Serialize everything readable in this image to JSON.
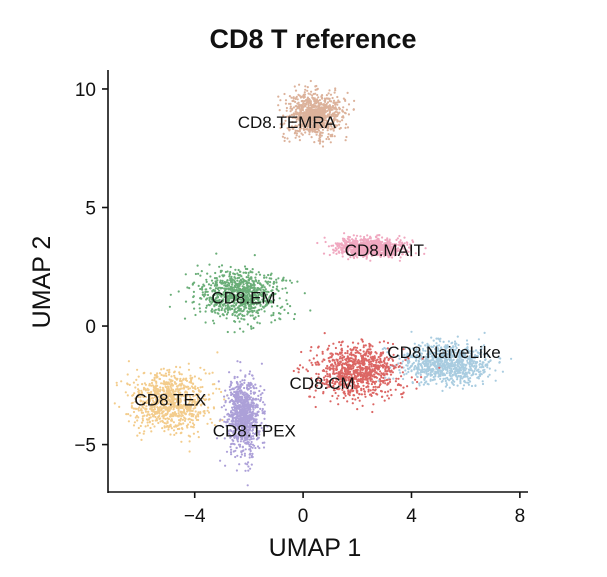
{
  "chart_data": {
    "type": "scatter",
    "title": "CD8 T reference",
    "xlabel": "UMAP 1",
    "ylabel": "UMAP 2",
    "xlim": [
      -7.2,
      8.3
    ],
    "ylim": [
      -7.0,
      10.8
    ],
    "xticks": [
      -4,
      0,
      4,
      8
    ],
    "xtick_labels": [
      "−4",
      "0",
      "4",
      "8"
    ],
    "yticks": [
      -5,
      0,
      5,
      10
    ],
    "ytick_labels": [
      "−5",
      "0",
      "5",
      "10"
    ],
    "grid": false,
    "legend": "none",
    "series": [
      {
        "name": "CD8.TEMRA",
        "color": "#dcb29b",
        "center": [
          0.4,
          8.9
        ],
        "spread": [
          1.2,
          1.1
        ],
        "label_pos": [
          -0.6,
          8.6
        ]
      },
      {
        "name": "CD8.MAIT",
        "color": "#f0a8c0",
        "center": [
          2.5,
          3.3
        ],
        "spread": [
          1.5,
          0.45
        ],
        "label_pos": [
          3.0,
          3.2
        ]
      },
      {
        "name": "CD8.EM",
        "color": "#6aae78",
        "center": [
          -2.3,
          1.3
        ],
        "spread": [
          1.8,
          1.2
        ],
        "label_pos": [
          -2.2,
          1.2
        ]
      },
      {
        "name": "CD8.NaiveLike",
        "color": "#a9cce0",
        "center": [
          5.3,
          -1.6
        ],
        "spread": [
          2.0,
          1.0
        ],
        "label_pos": [
          5.2,
          -1.1
        ]
      },
      {
        "name": "CD8.CM",
        "color": "#dc6664",
        "center": [
          2.0,
          -1.9
        ],
        "spread": [
          1.9,
          1.3
        ],
        "label_pos": [
          0.7,
          -2.4
        ]
      },
      {
        "name": "CD8.TEX",
        "color": "#f3cc8c",
        "center": [
          -4.9,
          -3.2
        ],
        "spread": [
          1.6,
          1.5
        ],
        "label_pos": [
          -4.9,
          -3.1
        ]
      },
      {
        "name": "CD8.TPEX",
        "color": "#aca0d8",
        "center": [
          -2.2,
          -3.8
        ],
        "spread": [
          0.7,
          1.9
        ],
        "label_pos": [
          -1.8,
          -4.4
        ]
      }
    ]
  }
}
